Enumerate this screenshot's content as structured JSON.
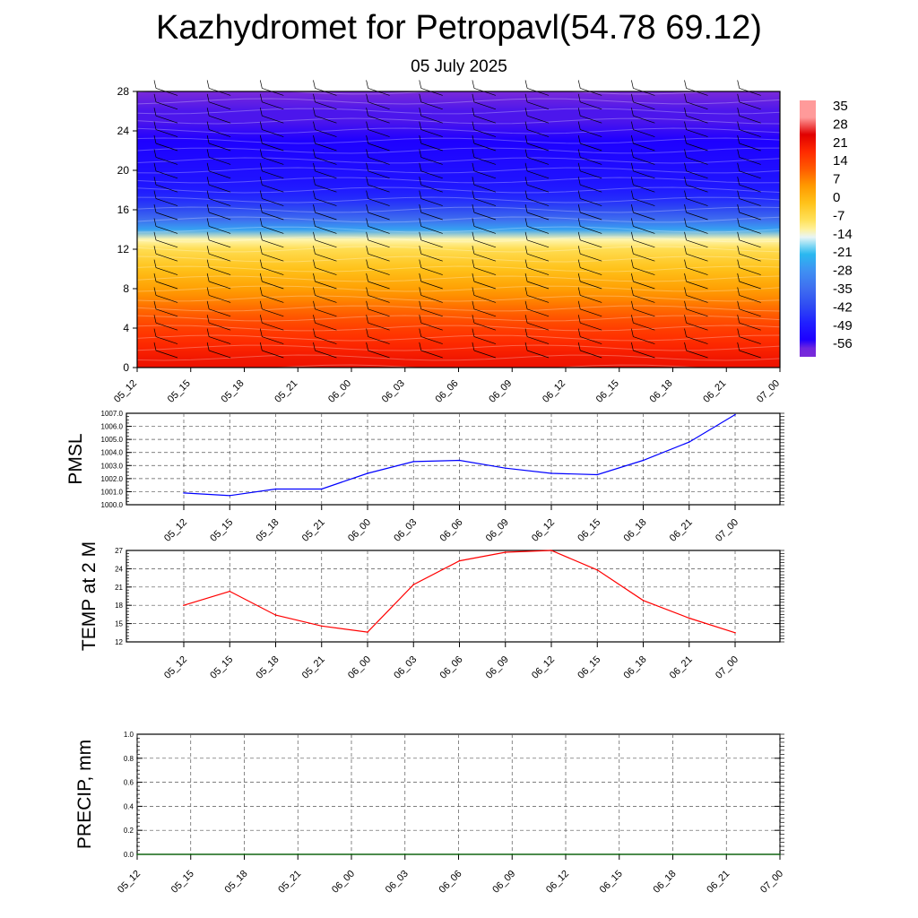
{
  "header": {
    "title": "Kazhydromet for Petropavl(54.78 69.12)",
    "date": "05 July 2025"
  },
  "colors": {
    "pmsl_line": "#0000ff",
    "temp_line": "#ff0000",
    "precip_line": "#006400",
    "grid": "#000000"
  },
  "chart_data": [
    {
      "type": "heatmap",
      "title": "",
      "xlabel": "",
      "ylabel": "",
      "x": [
        "05_12",
        "05_15",
        "05_18",
        "05_21",
        "06_00",
        "06_03",
        "06_06",
        "06_09",
        "06_12",
        "06_15",
        "06_18",
        "06_21",
        "07_00"
      ],
      "yticks": [
        0,
        4,
        8,
        12,
        16,
        20,
        24,
        28
      ],
      "ylim": [
        0,
        28
      ],
      "profile": {
        "levels": [
          0,
          1,
          2,
          3,
          4,
          5,
          6,
          7,
          8,
          9,
          10,
          11,
          12,
          13,
          14,
          15,
          16,
          17,
          18,
          19,
          20,
          21,
          22,
          23,
          24,
          25,
          26,
          27,
          28
        ],
        "values": [
          25,
          24,
          22,
          20,
          18,
          15,
          12,
          9,
          6,
          3,
          0,
          -3,
          -6,
          -12,
          -25,
          -35,
          -42,
          -47,
          -50,
          -52,
          -53,
          -54,
          -55,
          -56,
          -57,
          -58,
          -58,
          -59,
          -60
        ]
      },
      "colorbar": {
        "labels": [
          "35",
          "28",
          "21",
          "14",
          "7",
          "0",
          "-7",
          "-14",
          "-21",
          "-28",
          "-35",
          "-42",
          "-49",
          "-56"
        ]
      },
      "wind_barbs": true
    },
    {
      "type": "line",
      "ylabel": "PMSL",
      "x": [
        "05_12",
        "05_15",
        "05_18",
        "05_21",
        "06_00",
        "06_03",
        "06_06",
        "06_09",
        "06_12",
        "06_15",
        "06_18",
        "06_21",
        "07_00"
      ],
      "ylim": [
        1000,
        1007
      ],
      "yticks": [
        "1000.0",
        "1001.0",
        "1002.0",
        "1003.0",
        "1004.0",
        "1005.0",
        "1006.0",
        "1007.0"
      ],
      "series": [
        {
          "values": [
            1000.9,
            1000.7,
            1001.2,
            1001.2,
            1002.4,
            1003.3,
            1003.4,
            1002.8,
            1002.4,
            1002.3,
            1003.4,
            1004.8,
            1006.9
          ]
        }
      ]
    },
    {
      "type": "line",
      "ylabel": "TEMP at 2 M",
      "x": [
        "05_12",
        "05_15",
        "05_18",
        "05_21",
        "06_00",
        "06_03",
        "06_06",
        "06_09",
        "06_12",
        "06_15",
        "06_18",
        "06_21",
        "07_00"
      ],
      "ylim": [
        12,
        27
      ],
      "yticks": [
        "12",
        "15",
        "18",
        "21",
        "24",
        "27"
      ],
      "series": [
        {
          "values": [
            18.0,
            20.3,
            16.4,
            14.6,
            13.6,
            21.4,
            25.3,
            26.7,
            27.0,
            23.8,
            18.8,
            15.9,
            13.5
          ]
        }
      ]
    },
    {
      "type": "line",
      "ylabel": "PRECIP, mm",
      "x": [
        "05_12",
        "05_15",
        "05_18",
        "05_21",
        "06_00",
        "06_03",
        "06_06",
        "06_09",
        "06_12",
        "06_15",
        "06_18",
        "06_21",
        "07_00"
      ],
      "ylim": [
        0,
        1
      ],
      "yticks": [
        "0.0",
        "0.2",
        "0.4",
        "0.6",
        "0.8",
        "1.0"
      ],
      "series": [
        {
          "values": [
            0,
            0,
            0,
            0,
            0,
            0,
            0,
            0,
            0,
            0,
            0,
            0,
            0
          ]
        }
      ]
    }
  ]
}
